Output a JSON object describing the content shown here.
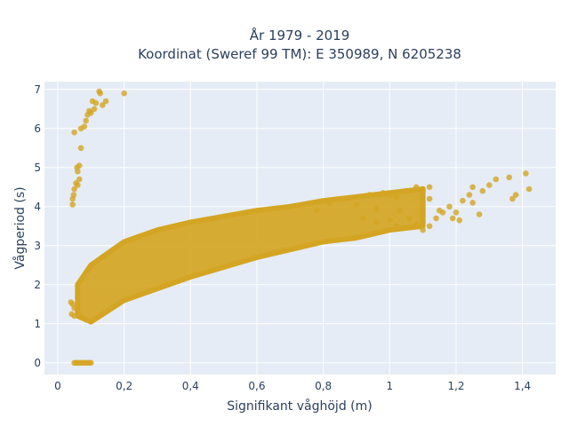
{
  "chart_data": {
    "type": "scatter",
    "title_line1": "År 1979 - 2019",
    "title_line2": "Koordinat (Sweref 99 TM): E 350989, N 6205238",
    "xlabel": "Signifikant våghöjd (m)",
    "ylabel": "Vågperiod (s)",
    "xlim": [
      -0.04,
      1.5
    ],
    "ylim": [
      -0.3,
      7.2
    ],
    "x_ticks": [
      0,
      0.2,
      0.4,
      0.6,
      0.8,
      1,
      1.2,
      1.4
    ],
    "x_tick_labels": [
      "0",
      "0,2",
      "0,4",
      "0,6",
      "0,8",
      "1",
      "1,2",
      "1,4"
    ],
    "y_ticks": [
      0,
      1,
      2,
      3,
      4,
      5,
      6,
      7
    ],
    "y_tick_labels": [
      "0",
      "1",
      "2",
      "3",
      "4",
      "5",
      "6",
      "7"
    ],
    "grid": true,
    "plot_bgcolor": "#e5ecf6",
    "marker_color": "#d4a523",
    "band": [
      {
        "x": 0.06,
        "lo": 1.2,
        "hi": 2.0
      },
      {
        "x": 0.1,
        "lo": 1.05,
        "hi": 2.5
      },
      {
        "x": 0.2,
        "lo": 1.6,
        "hi": 3.1
      },
      {
        "x": 0.3,
        "lo": 1.9,
        "hi": 3.4
      },
      {
        "x": 0.4,
        "lo": 2.2,
        "hi": 3.6
      },
      {
        "x": 0.5,
        "lo": 2.45,
        "hi": 3.75
      },
      {
        "x": 0.6,
        "lo": 2.7,
        "hi": 3.9
      },
      {
        "x": 0.7,
        "lo": 2.9,
        "hi": 4.0
      },
      {
        "x": 0.8,
        "lo": 3.1,
        "hi": 4.15
      },
      {
        "x": 0.9,
        "lo": 3.2,
        "hi": 4.25
      },
      {
        "x": 1.0,
        "lo": 3.4,
        "hi": 4.35
      },
      {
        "x": 1.1,
        "lo": 3.5,
        "hi": 4.45
      }
    ],
    "points": [
      [
        0.05,
        0.0
      ],
      [
        0.055,
        0.0
      ],
      [
        0.06,
        0.0
      ],
      [
        0.065,
        0.0
      ],
      [
        0.07,
        0.0
      ],
      [
        0.075,
        0.0
      ],
      [
        0.08,
        0.0
      ],
      [
        0.085,
        0.0
      ],
      [
        0.09,
        0.0
      ],
      [
        0.095,
        0.0
      ],
      [
        0.1,
        0.0
      ],
      [
        0.045,
        4.05
      ],
      [
        0.045,
        4.2
      ],
      [
        0.048,
        4.3
      ],
      [
        0.05,
        4.45
      ],
      [
        0.055,
        4.6
      ],
      [
        0.06,
        4.55
      ],
      [
        0.06,
        4.9
      ],
      [
        0.058,
        5.0
      ],
      [
        0.065,
        5.05
      ],
      [
        0.065,
        4.7
      ],
      [
        0.07,
        5.5
      ],
      [
        0.05,
        5.9
      ],
      [
        0.07,
        6.0
      ],
      [
        0.08,
        6.05
      ],
      [
        0.085,
        6.2
      ],
      [
        0.09,
        6.35
      ],
      [
        0.095,
        6.45
      ],
      [
        0.1,
        6.4
      ],
      [
        0.11,
        6.5
      ],
      [
        0.105,
        6.7
      ],
      [
        0.115,
        6.65
      ],
      [
        0.125,
        6.95
      ],
      [
        0.128,
        6.9
      ],
      [
        0.135,
        6.6
      ],
      [
        0.145,
        6.7
      ],
      [
        0.2,
        6.9
      ],
      [
        0.04,
        1.55
      ],
      [
        0.045,
        1.5
      ],
      [
        0.05,
        1.4
      ],
      [
        0.042,
        1.25
      ],
      [
        0.05,
        1.2
      ],
      [
        0.78,
        3.9
      ],
      [
        0.82,
        4.1
      ],
      [
        0.86,
        4.2
      ],
      [
        0.9,
        4.05
      ],
      [
        0.94,
        4.3
      ],
      [
        0.98,
        4.35
      ],
      [
        1.0,
        4.3
      ],
      [
        1.02,
        4.25
      ],
      [
        1.05,
        4.4
      ],
      [
        1.08,
        4.5
      ],
      [
        1.1,
        4.45
      ],
      [
        1.12,
        4.5
      ],
      [
        0.92,
        3.7
      ],
      [
        0.96,
        3.6
      ],
      [
        1.0,
        3.65
      ],
      [
        1.02,
        3.5
      ],
      [
        1.06,
        3.7
      ],
      [
        1.08,
        3.55
      ],
      [
        1.1,
        3.4
      ],
      [
        1.12,
        3.5
      ],
      [
        1.14,
        3.7
      ],
      [
        1.16,
        3.85
      ],
      [
        1.1,
        4.1
      ],
      [
        1.12,
        4.2
      ],
      [
        1.15,
        3.9
      ],
      [
        1.18,
        4.0
      ],
      [
        1.2,
        3.85
      ],
      [
        1.22,
        4.15
      ],
      [
        1.25,
        4.1
      ],
      [
        1.24,
        4.3
      ],
      [
        1.28,
        4.4
      ],
      [
        1.25,
        4.5
      ],
      [
        1.27,
        3.8
      ],
      [
        1.32,
        4.7
      ],
      [
        1.36,
        4.75
      ],
      [
        1.37,
        4.2
      ],
      [
        1.38,
        4.3
      ],
      [
        1.41,
        4.85
      ],
      [
        1.42,
        4.45
      ],
      [
        1.3,
        4.55
      ],
      [
        1.21,
        3.65
      ],
      [
        1.19,
        3.7
      ],
      [
        1.03,
        3.9
      ],
      [
        0.96,
        3.95
      ]
    ]
  }
}
